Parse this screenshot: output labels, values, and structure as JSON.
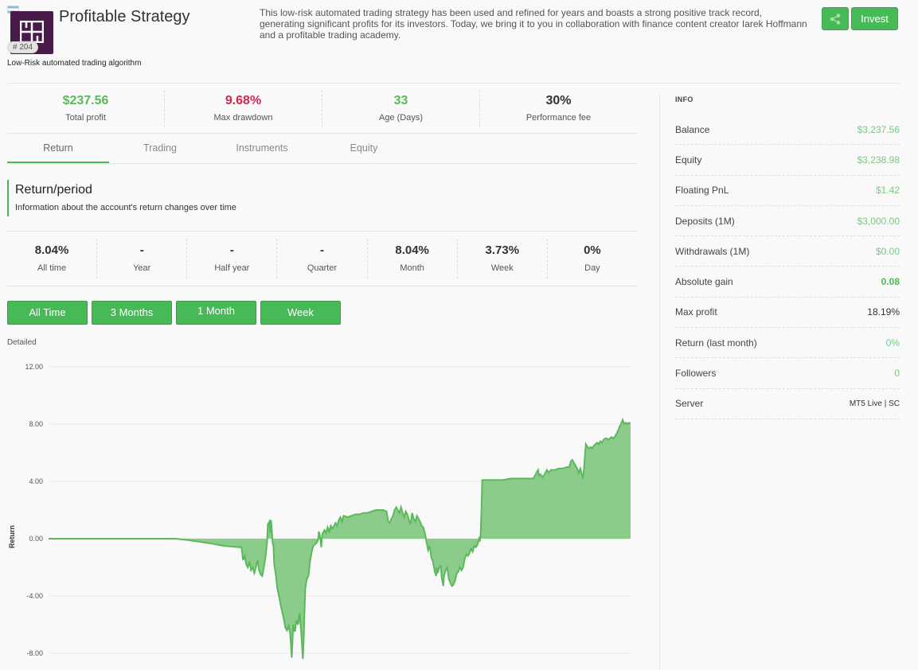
{
  "header": {
    "title": "Profitable Strategy",
    "id_badge": "# 204",
    "subtitle": "Low-Risk automated trading algorithm",
    "description": "This low-risk automated trading strategy has been used and refined for years and boasts a strong positive track record, generating significant profits for its investors. Today, we bring it to you in collaboration with finance content creator Iarek Hoffmann and a profitable trading academy.",
    "invest_label": "Invest",
    "share_icon": "share-icon",
    "flag_icon": "flag-icon"
  },
  "stats": [
    {
      "value": "$237.56",
      "label": "Total profit",
      "color": "#5cb85c"
    },
    {
      "value": "9.68%",
      "label": "Max drawdown",
      "color": "#d0284c"
    },
    {
      "value": "33",
      "label": "Age (Days)",
      "color": "#5cb85c"
    },
    {
      "value": "30%",
      "label": "Performance fee",
      "color": "#333333"
    }
  ],
  "tabs": [
    "Return",
    "Trading",
    "Instruments",
    "Equity"
  ],
  "return_period": {
    "title": "Return/period",
    "description": "Information about the account's return changes over time"
  },
  "returns": [
    {
      "value": "8.04%",
      "label": "All time"
    },
    {
      "value": "-",
      "label": "Year"
    },
    {
      "value": "-",
      "label": "Half year"
    },
    {
      "value": "-",
      "label": "Quarter"
    },
    {
      "value": "8.04%",
      "label": "Month"
    },
    {
      "value": "3.73%",
      "label": "Week"
    },
    {
      "value": "0%",
      "label": "Day"
    }
  ],
  "period_buttons": [
    "All Time",
    "3 Months",
    "1 Month",
    "Week"
  ],
  "chart_label": "Detailed",
  "chart_data": {
    "type": "area",
    "ylabel": "Return",
    "ylim": [
      -8.6,
      12
    ],
    "yticks": [
      "12.00",
      "8.00",
      "4.00",
      "0.00",
      "-4.00",
      "-8.00"
    ],
    "ytick_values": [
      12,
      8,
      4,
      0,
      -4,
      -8
    ],
    "grid": true,
    "color": "#5cb85c",
    "points": [
      [
        0,
        0
      ],
      [
        120,
        0
      ],
      [
        160,
        0
      ],
      [
        175,
        -0.1
      ],
      [
        200,
        -0.3
      ],
      [
        220,
        -0.5
      ],
      [
        240,
        -0.6
      ],
      [
        242,
        -0.6
      ],
      [
        244,
        -1.5
      ],
      [
        246,
        -1.2
      ],
      [
        248,
        -1.8
      ],
      [
        250,
        -2.0
      ],
      [
        252,
        -1.6
      ],
      [
        254,
        -2.2
      ],
      [
        256,
        -2.0
      ],
      [
        258,
        -2.4
      ],
      [
        260,
        -2.0
      ],
      [
        262,
        -1.5
      ],
      [
        264,
        -2.2
      ],
      [
        266,
        -2.5
      ],
      [
        268,
        -2.6
      ],
      [
        270,
        -2.0
      ],
      [
        272,
        -1.3
      ],
      [
        274,
        -0.3
      ],
      [
        275,
        1.0
      ],
      [
        277,
        1.2
      ],
      [
        278,
        0.4
      ],
      [
        279,
        1.3
      ],
      [
        280,
        0.6
      ],
      [
        281,
        -0.3
      ],
      [
        282,
        -0.5
      ],
      [
        283,
        -1.8
      ],
      [
        285,
        -2.5
      ],
      [
        287,
        -3.5
      ],
      [
        289,
        -4.0
      ],
      [
        291,
        -4.6
      ],
      [
        293,
        -5.1
      ],
      [
        295,
        -5.6
      ],
      [
        297,
        -6.2
      ],
      [
        299,
        -6.4
      ],
      [
        301,
        -6.1
      ],
      [
        303,
        -6.6
      ],
      [
        304,
        -7.4
      ],
      [
        305,
        -8.3
      ],
      [
        306,
        -7.1
      ],
      [
        307,
        -6.0
      ],
      [
        309,
        -6.5
      ],
      [
        311,
        -5.7
      ],
      [
        313,
        -6.0
      ],
      [
        315,
        -5.2
      ],
      [
        317,
        -6.6
      ],
      [
        318,
        -7.5
      ],
      [
        319,
        -8.4
      ],
      [
        320,
        -7.1
      ],
      [
        321,
        -5.2
      ],
      [
        322,
        -3.5
      ],
      [
        324,
        -2.8
      ],
      [
        326,
        -2.6
      ],
      [
        328,
        -1.6
      ],
      [
        330,
        -0.9
      ],
      [
        332,
        -0.5
      ],
      [
        334,
        -0.4
      ],
      [
        336,
        -0.3
      ],
      [
        338,
        -0.1
      ],
      [
        339,
        0.5
      ],
      [
        340,
        0.3
      ],
      [
        341,
        -0.1
      ],
      [
        342,
        -0.6
      ],
      [
        343,
        0.2
      ],
      [
        344,
        0.4
      ],
      [
        346,
        0.6
      ],
      [
        348,
        0.4
      ],
      [
        350,
        0.8
      ],
      [
        352,
        0.5
      ],
      [
        354,
        0.9
      ],
      [
        356,
        0.7
      ],
      [
        358,
        0.9
      ],
      [
        360,
        1.1
      ],
      [
        362,
        0.9
      ],
      [
        364,
        1.3
      ],
      [
        366,
        1.5
      ],
      [
        368,
        1.2
      ],
      [
        370,
        1.6
      ],
      [
        375,
        1.5
      ],
      [
        380,
        1.6
      ],
      [
        385,
        1.7
      ],
      [
        390,
        1.7
      ],
      [
        395,
        1.8
      ],
      [
        400,
        1.8
      ],
      [
        405,
        1.9
      ],
      [
        410,
        2.0
      ],
      [
        415,
        2.0
      ],
      [
        420,
        2.0
      ],
      [
        424,
        1.9
      ],
      [
        426,
        1.2
      ],
      [
        428,
        1.1
      ],
      [
        430,
        1.4
      ],
      [
        432,
        1.6
      ],
      [
        434,
        2.0
      ],
      [
        436,
        2.2
      ],
      [
        438,
        2.0
      ],
      [
        440,
        1.8
      ],
      [
        442,
        2.2
      ],
      [
        444,
        1.8
      ],
      [
        446,
        1.5
      ],
      [
        448,
        1.9
      ],
      [
        450,
        1.7
      ],
      [
        452,
        1.3
      ],
      [
        454,
        1.0
      ],
      [
        456,
        1.8
      ],
      [
        458,
        1.4
      ],
      [
        460,
        1.2
      ],
      [
        462,
        1.6
      ],
      [
        464,
        1.4
      ],
      [
        466,
        1.2
      ],
      [
        468,
        0.9
      ],
      [
        470,
        0.8
      ],
      [
        472,
        0.4
      ],
      [
        474,
        -0.2
      ],
      [
        476,
        -0.8
      ],
      [
        478,
        -0.5
      ],
      [
        480,
        -1.3
      ],
      [
        482,
        -1.6
      ],
      [
        484,
        -2.2
      ],
      [
        486,
        -2.6
      ],
      [
        487,
        -2.0
      ],
      [
        488,
        -2.4
      ],
      [
        490,
        -2.0
      ],
      [
        492,
        -1.9
      ],
      [
        493,
        -2.7
      ],
      [
        494,
        -3.0
      ],
      [
        495,
        -3.3
      ],
      [
        496,
        -2.6
      ],
      [
        498,
        -2.2
      ],
      [
        500,
        -2.0
      ],
      [
        502,
        -2.8
      ],
      [
        504,
        -3.1
      ],
      [
        506,
        -3.3
      ],
      [
        508,
        -3.2
      ],
      [
        510,
        -2.9
      ],
      [
        512,
        -2.4
      ],
      [
        514,
        -2.3
      ],
      [
        516,
        -2.0
      ],
      [
        518,
        -2.2
      ],
      [
        520,
        -2.0
      ],
      [
        522,
        -1.4
      ],
      [
        524,
        -1.1
      ],
      [
        526,
        -1.2
      ],
      [
        528,
        -1.0
      ],
      [
        530,
        -0.7
      ],
      [
        532,
        -0.9
      ],
      [
        534,
        -0.5
      ],
      [
        536,
        -0.6
      ],
      [
        538,
        -0.4
      ],
      [
        540,
        0.0
      ],
      [
        541,
        -0.2
      ],
      [
        542,
        0.3
      ],
      [
        543,
        2.0
      ],
      [
        544,
        4.1
      ],
      [
        550,
        4.1
      ],
      [
        560,
        4.1
      ],
      [
        570,
        4.1
      ],
      [
        580,
        4.2
      ],
      [
        590,
        4.2
      ],
      [
        600,
        4.2
      ],
      [
        608,
        4.2
      ],
      [
        610,
        4.4
      ],
      [
        612,
        4.6
      ],
      [
        614,
        4.8
      ],
      [
        615,
        4.4
      ],
      [
        617,
        4.5
      ],
      [
        619,
        4.3
      ],
      [
        621,
        4.4
      ],
      [
        623,
        4.6
      ],
      [
        625,
        4.8
      ],
      [
        627,
        4.6
      ],
      [
        630,
        4.8
      ],
      [
        635,
        4.8
      ],
      [
        640,
        4.9
      ],
      [
        645,
        4.9
      ],
      [
        650,
        5.0
      ],
      [
        653,
        5.0
      ],
      [
        655,
        5.4
      ],
      [
        657,
        5.5
      ],
      [
        659,
        5.3
      ],
      [
        661,
        5.1
      ],
      [
        663,
        4.9
      ],
      [
        665,
        4.6
      ],
      [
        667,
        4.9
      ],
      [
        669,
        4.5
      ],
      [
        670,
        4.3
      ],
      [
        671,
        4.5
      ],
      [
        672,
        5.2
      ],
      [
        673,
        6.0
      ],
      [
        674,
        6.6
      ],
      [
        676,
        6.4
      ],
      [
        678,
        6.3
      ],
      [
        680,
        6.4
      ],
      [
        682,
        6.3
      ],
      [
        684,
        6.5
      ],
      [
        686,
        6.6
      ],
      [
        688,
        6.7
      ],
      [
        690,
        6.6
      ],
      [
        692,
        6.8
      ],
      [
        694,
        6.7
      ],
      [
        696,
        6.9
      ],
      [
        698,
        7.0
      ],
      [
        700,
        7.0
      ],
      [
        702,
        6.9
      ],
      [
        704,
        7.0
      ],
      [
        706,
        7.1
      ],
      [
        708,
        7.0
      ],
      [
        710,
        7.1
      ],
      [
        712,
        7.3
      ],
      [
        714,
        7.5
      ],
      [
        716,
        7.8
      ],
      [
        718,
        8.0
      ],
      [
        720,
        8.3
      ],
      [
        722,
        8.0
      ],
      [
        724,
        8.1
      ],
      [
        726,
        8.0
      ],
      [
        728,
        8.1
      ],
      [
        730,
        8.04
      ]
    ]
  },
  "info": {
    "heading": "INFO",
    "rows": [
      {
        "key": "Balance",
        "value": "$3,237.56",
        "style": "green"
      },
      {
        "key": "Equity",
        "value": "$3,238.98",
        "style": "green"
      },
      {
        "key": "Floating PnL",
        "value": "$1.42",
        "style": "green"
      },
      {
        "key": "Deposits (1M)",
        "value": "$3,000.00",
        "style": "green"
      },
      {
        "key": "Withdrawals (1M)",
        "value": "$0.00",
        "style": "green"
      },
      {
        "key": "Absolute gain",
        "value": "0.08",
        "style": "bold"
      },
      {
        "key": "Max profit",
        "value": "18.19%",
        "style": "dark"
      },
      {
        "key": "Return (last month)",
        "value": "0%",
        "style": "green"
      },
      {
        "key": "Followers",
        "value": "0",
        "style": "green"
      },
      {
        "key": "Server",
        "value": "MT5 Live | SC",
        "style": "small"
      }
    ]
  }
}
